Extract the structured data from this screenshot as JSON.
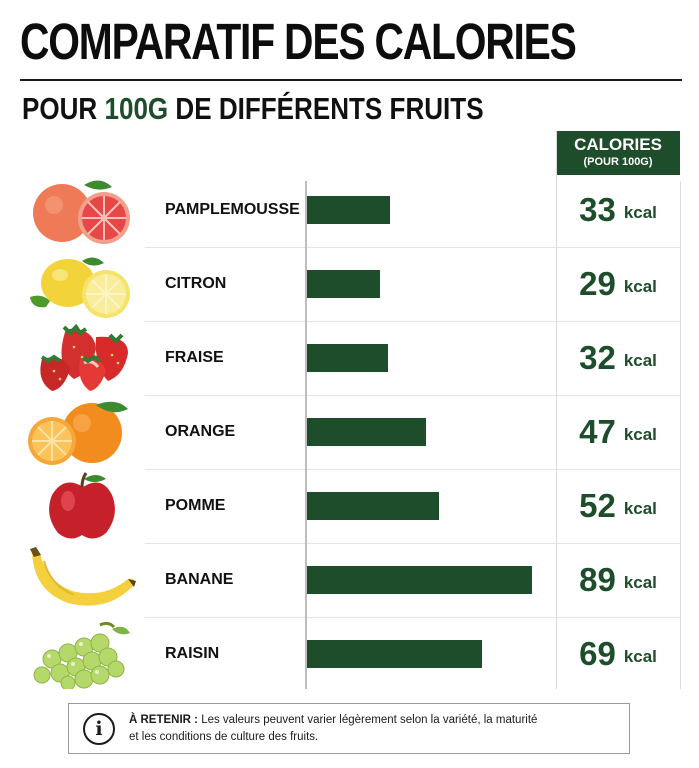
{
  "page": {
    "title": "COMPARATIF DES CALORIES",
    "subtitle_pre": "POUR ",
    "subtitle_accent": "100G",
    "subtitle_post": " DE DIFFÉRENTS FRUITS",
    "calories_header": "CALORIES",
    "calories_subheader": "(POUR 100G)",
    "note_lead": "À RETENIR :",
    "note_text_line1": " Les valeurs peuvent varier légèrement selon la variété, la maturité",
    "note_text_line2": "et les conditions de culture des fruits.",
    "note_icon": "i",
    "accent_color": "#1e4d2b"
  },
  "chart_data": {
    "type": "bar",
    "orientation": "horizontal",
    "title": "COMPARATIF DES CALORIES",
    "subtitle": "POUR 100G DE DIFFÉRENTS FRUITS",
    "categories": [
      "PAMPLEMOUSSE",
      "CITRON",
      "FRAISE",
      "ORANGE",
      "POMME",
      "BANANE",
      "RAISIN"
    ],
    "values": [
      33,
      29,
      32,
      47,
      52,
      89,
      69
    ],
    "unit": "kcal",
    "value_labels": [
      "33",
      "29",
      "32",
      "47",
      "52",
      "89",
      "69"
    ],
    "icons": [
      "grapefruit-icon",
      "lemon-icon",
      "strawberry-icon",
      "orange-icon",
      "apple-icon",
      "banana-icon",
      "grapes-icon"
    ],
    "xlim": [
      0,
      100
    ],
    "grid": true,
    "bar_color": "#1e4d2b"
  }
}
